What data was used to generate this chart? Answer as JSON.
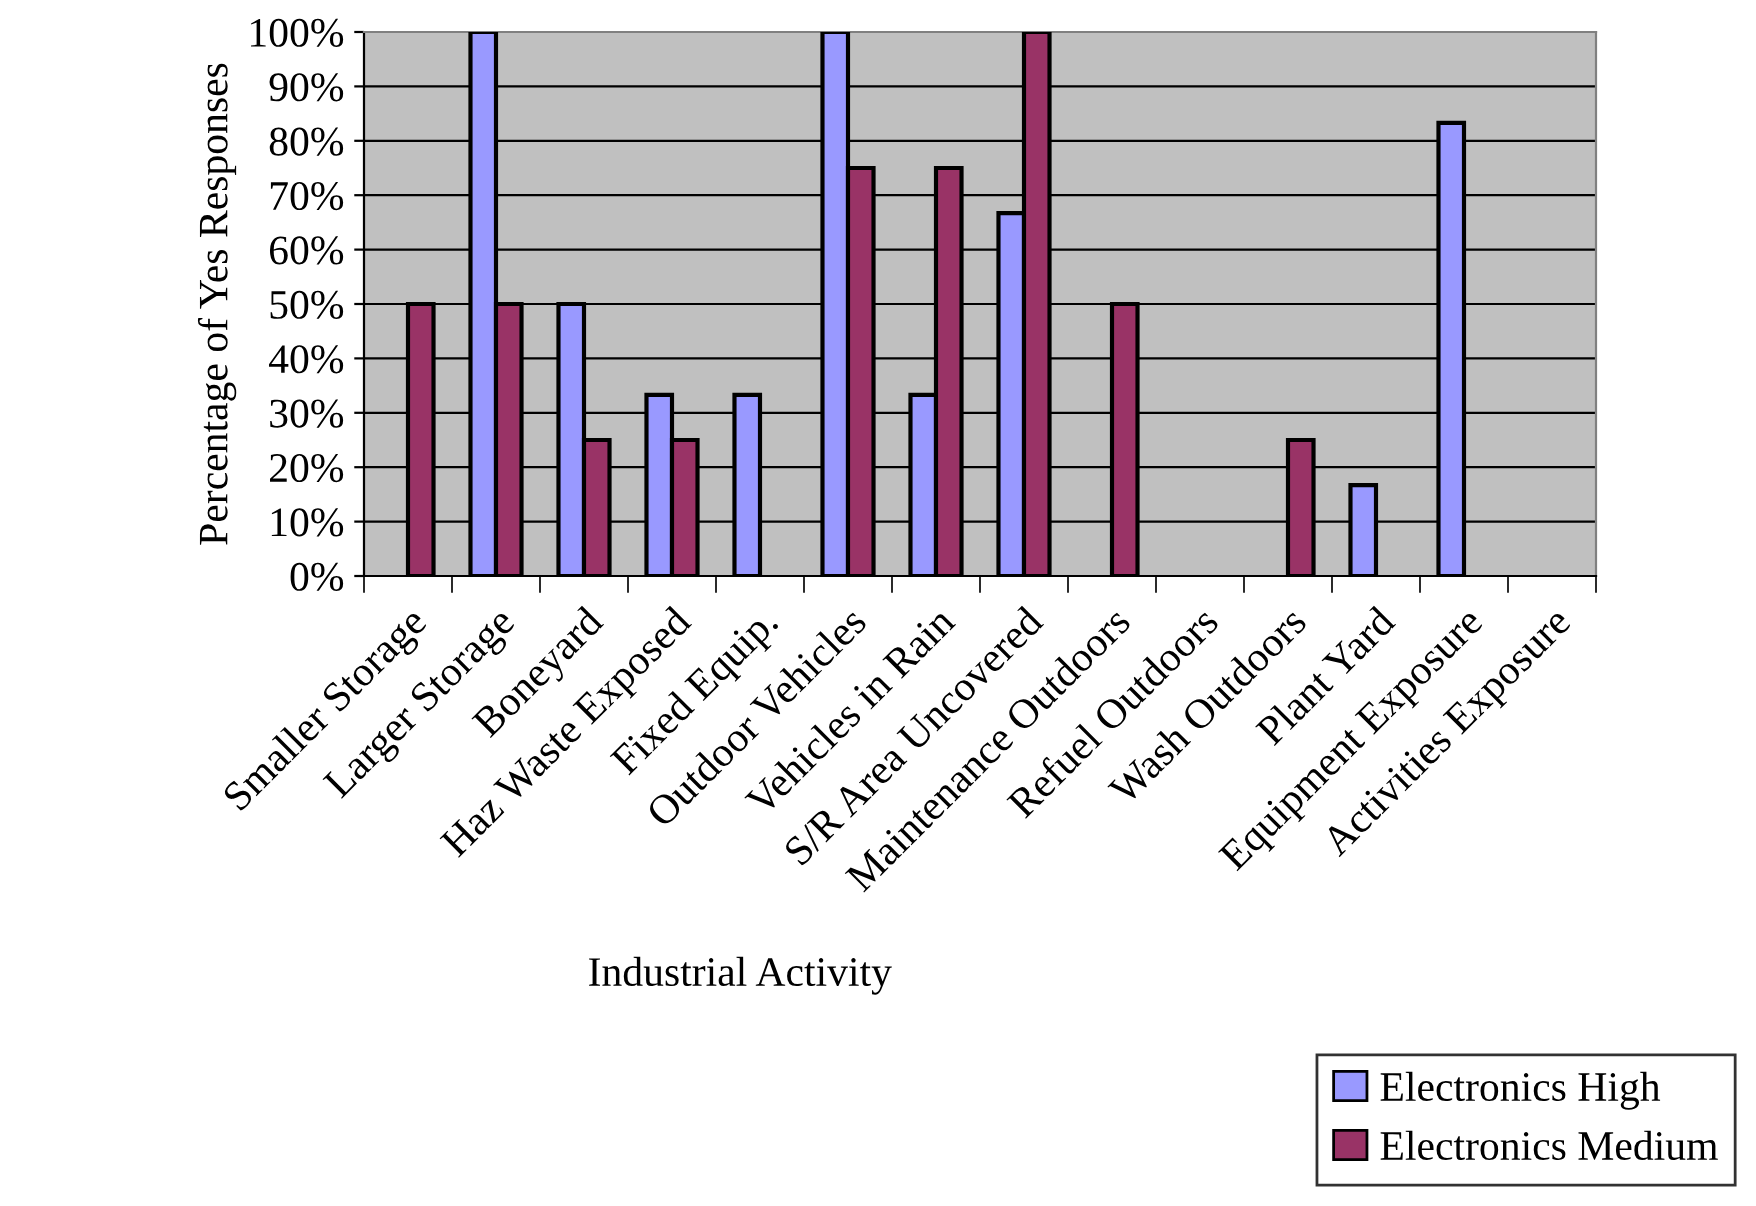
{
  "chart_data": {
    "type": "bar",
    "xlabel": "Industrial Activity",
    "ylabel": "Percentage of Yes Responses",
    "categories": [
      "Smaller Storage",
      "Larger Storage",
      "Boneyard",
      "Haz Waste Exposed",
      "Fixed Equip.",
      "Outdoor Vehicles",
      "Vehicles in Rain",
      "S/R Area Uncovered",
      "Maintenance Outdoors",
      "Refuel Outdoors",
      "Wash Outdoors",
      "Plant Yard",
      "Equipment Exposure",
      "Activities Exposure"
    ],
    "series": [
      {
        "name": "Electronics High",
        "color": "#9999ff",
        "values": [
          0,
          100,
          50,
          33.3,
          33.3,
          100,
          33.3,
          66.7,
          0,
          0,
          0,
          16.7,
          83.3,
          0
        ]
      },
      {
        "name": "Electronics Medium",
        "color": "#993366",
        "values": [
          50,
          50,
          25,
          25,
          0,
          75,
          75,
          100,
          50,
          0,
          25,
          0,
          0,
          0
        ]
      }
    ],
    "ylim": [
      0,
      100
    ],
    "yticks": [
      {
        "value": 0,
        "label": "0%"
      },
      {
        "value": 10,
        "label": "10%"
      },
      {
        "value": 20,
        "label": "20%"
      },
      {
        "value": 30,
        "label": "30%"
      },
      {
        "value": 40,
        "label": "40%"
      },
      {
        "value": 50,
        "label": "50%"
      },
      {
        "value": 60,
        "label": "60%"
      },
      {
        "value": 70,
        "label": "70%"
      },
      {
        "value": 80,
        "label": "80%"
      },
      {
        "value": 90,
        "label": "90%"
      },
      {
        "value": 100,
        "label": "100%"
      }
    ],
    "grid": "y",
    "legend": "bottom right"
  }
}
